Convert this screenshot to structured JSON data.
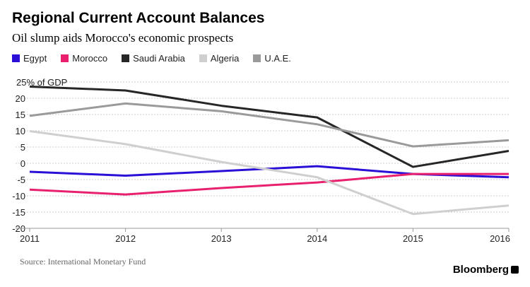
{
  "chart_data": {
    "type": "line",
    "title": "Regional Current Account Balances",
    "subtitle": "Oil slump aids Morocco's economic prospects",
    "y_unit_label": "25% of GDP",
    "x": [
      "2011",
      "2012",
      "2013",
      "2014",
      "2015",
      "2016"
    ],
    "y_ticks": [
      "20",
      "15",
      "10",
      "5",
      "0",
      "-5",
      "-10",
      "-15",
      "-20"
    ],
    "ylim": [
      -20,
      25
    ],
    "grid": true,
    "legend_position": "top-left",
    "series": [
      {
        "name": "Egypt",
        "color": "#2a10d6",
        "values": [
          -2.6,
          -3.8,
          -2.4,
          -0.9,
          -3.3,
          -4.3
        ]
      },
      {
        "name": "Morocco",
        "color": "#e8206d",
        "values": [
          -8.1,
          -9.6,
          -7.6,
          -5.9,
          -3.3,
          -3.3
        ]
      },
      {
        "name": "Saudi Arabia",
        "color": "#262626",
        "values": [
          23.6,
          22.4,
          17.7,
          14.1,
          -1.1,
          3.8
        ]
      },
      {
        "name": "Algeria",
        "color": "#cfcfcf",
        "values": [
          9.9,
          5.9,
          0.4,
          -4.3,
          -15.6,
          -13.0
        ]
      },
      {
        "name": "U.A.E.",
        "color": "#9a9a9a",
        "values": [
          14.6,
          18.4,
          16.0,
          12.0,
          5.2,
          7.1
        ]
      }
    ]
  },
  "footer": {
    "source": "Source: International Monetary Fund",
    "brand": "Bloomberg"
  }
}
